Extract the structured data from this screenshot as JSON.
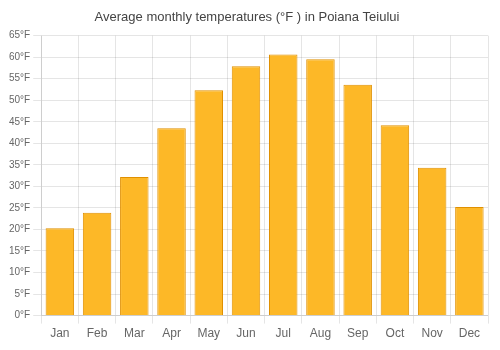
{
  "chart_data": {
    "type": "bar",
    "title": "Average monthly temperatures (°F ) in Poiana Teiului",
    "categories": [
      "Jan",
      "Feb",
      "Mar",
      "Apr",
      "May",
      "Jun",
      "Jul",
      "Aug",
      "Sep",
      "Oct",
      "Nov",
      "Dec"
    ],
    "values": [
      20.3,
      23.9,
      32.2,
      43.5,
      52.3,
      57.9,
      60.6,
      59.5,
      53.6,
      44.2,
      34.3,
      25.2
    ],
    "color": "#FDB827",
    "ylim": [
      0,
      65
    ],
    "yticks": [
      {
        "value": 0,
        "label": "0°F"
      },
      {
        "value": 5,
        "label": "5°F"
      },
      {
        "value": 10,
        "label": "10°F"
      },
      {
        "value": 15,
        "label": "15°F"
      },
      {
        "value": 20,
        "label": "20°F"
      },
      {
        "value": 25,
        "label": "25°F"
      },
      {
        "value": 30,
        "label": "30°F"
      },
      {
        "value": 35,
        "label": "35°F"
      },
      {
        "value": 40,
        "label": "40°F"
      },
      {
        "value": 45,
        "label": "45°F"
      },
      {
        "value": 50,
        "label": "50°F"
      },
      {
        "value": 55,
        "label": "55°F"
      },
      {
        "value": 60,
        "label": "60°F"
      },
      {
        "value": 65,
        "label": "65°F"
      }
    ],
    "grid": true
  }
}
